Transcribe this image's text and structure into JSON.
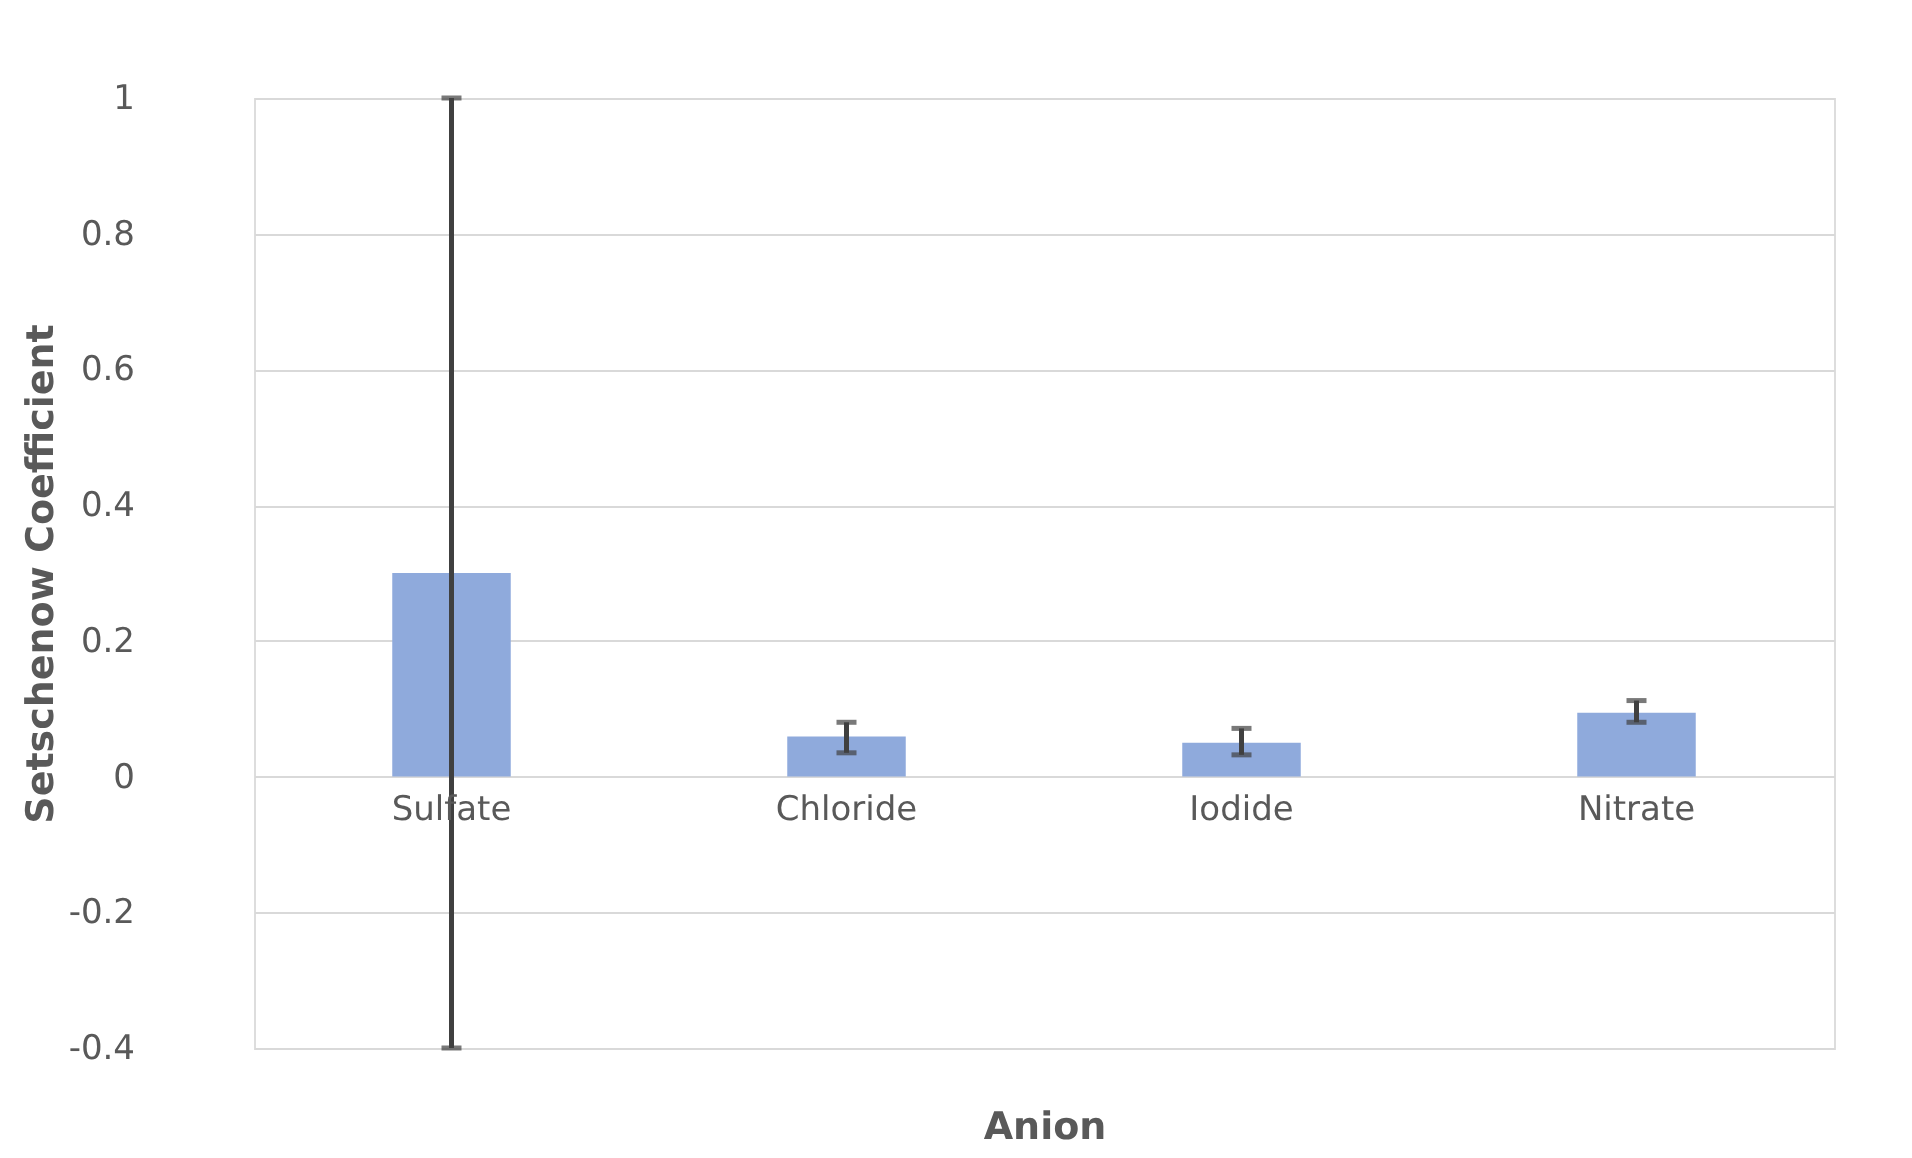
{
  "chart_data": {
    "type": "bar",
    "xlabel": "Anion",
    "ylabel": "Setschenow Coefficient",
    "categories": [
      "Sulfate",
      "Chloride",
      "Iodide",
      "Nitrate"
    ],
    "values": [
      0.3,
      0.059,
      0.05,
      0.094
    ],
    "errors": [
      [
        -0.4,
        1.0
      ],
      [
        0.035,
        0.08
      ],
      [
        0.032,
        0.071
      ],
      [
        0.08,
        0.112
      ]
    ],
    "color": "#8faadc",
    "ylim": [
      -0.4,
      1
    ],
    "yticks": [
      -0.4,
      -0.2,
      0,
      0.2,
      0.4,
      0.6,
      0.8,
      1
    ],
    "grid": "y"
  }
}
